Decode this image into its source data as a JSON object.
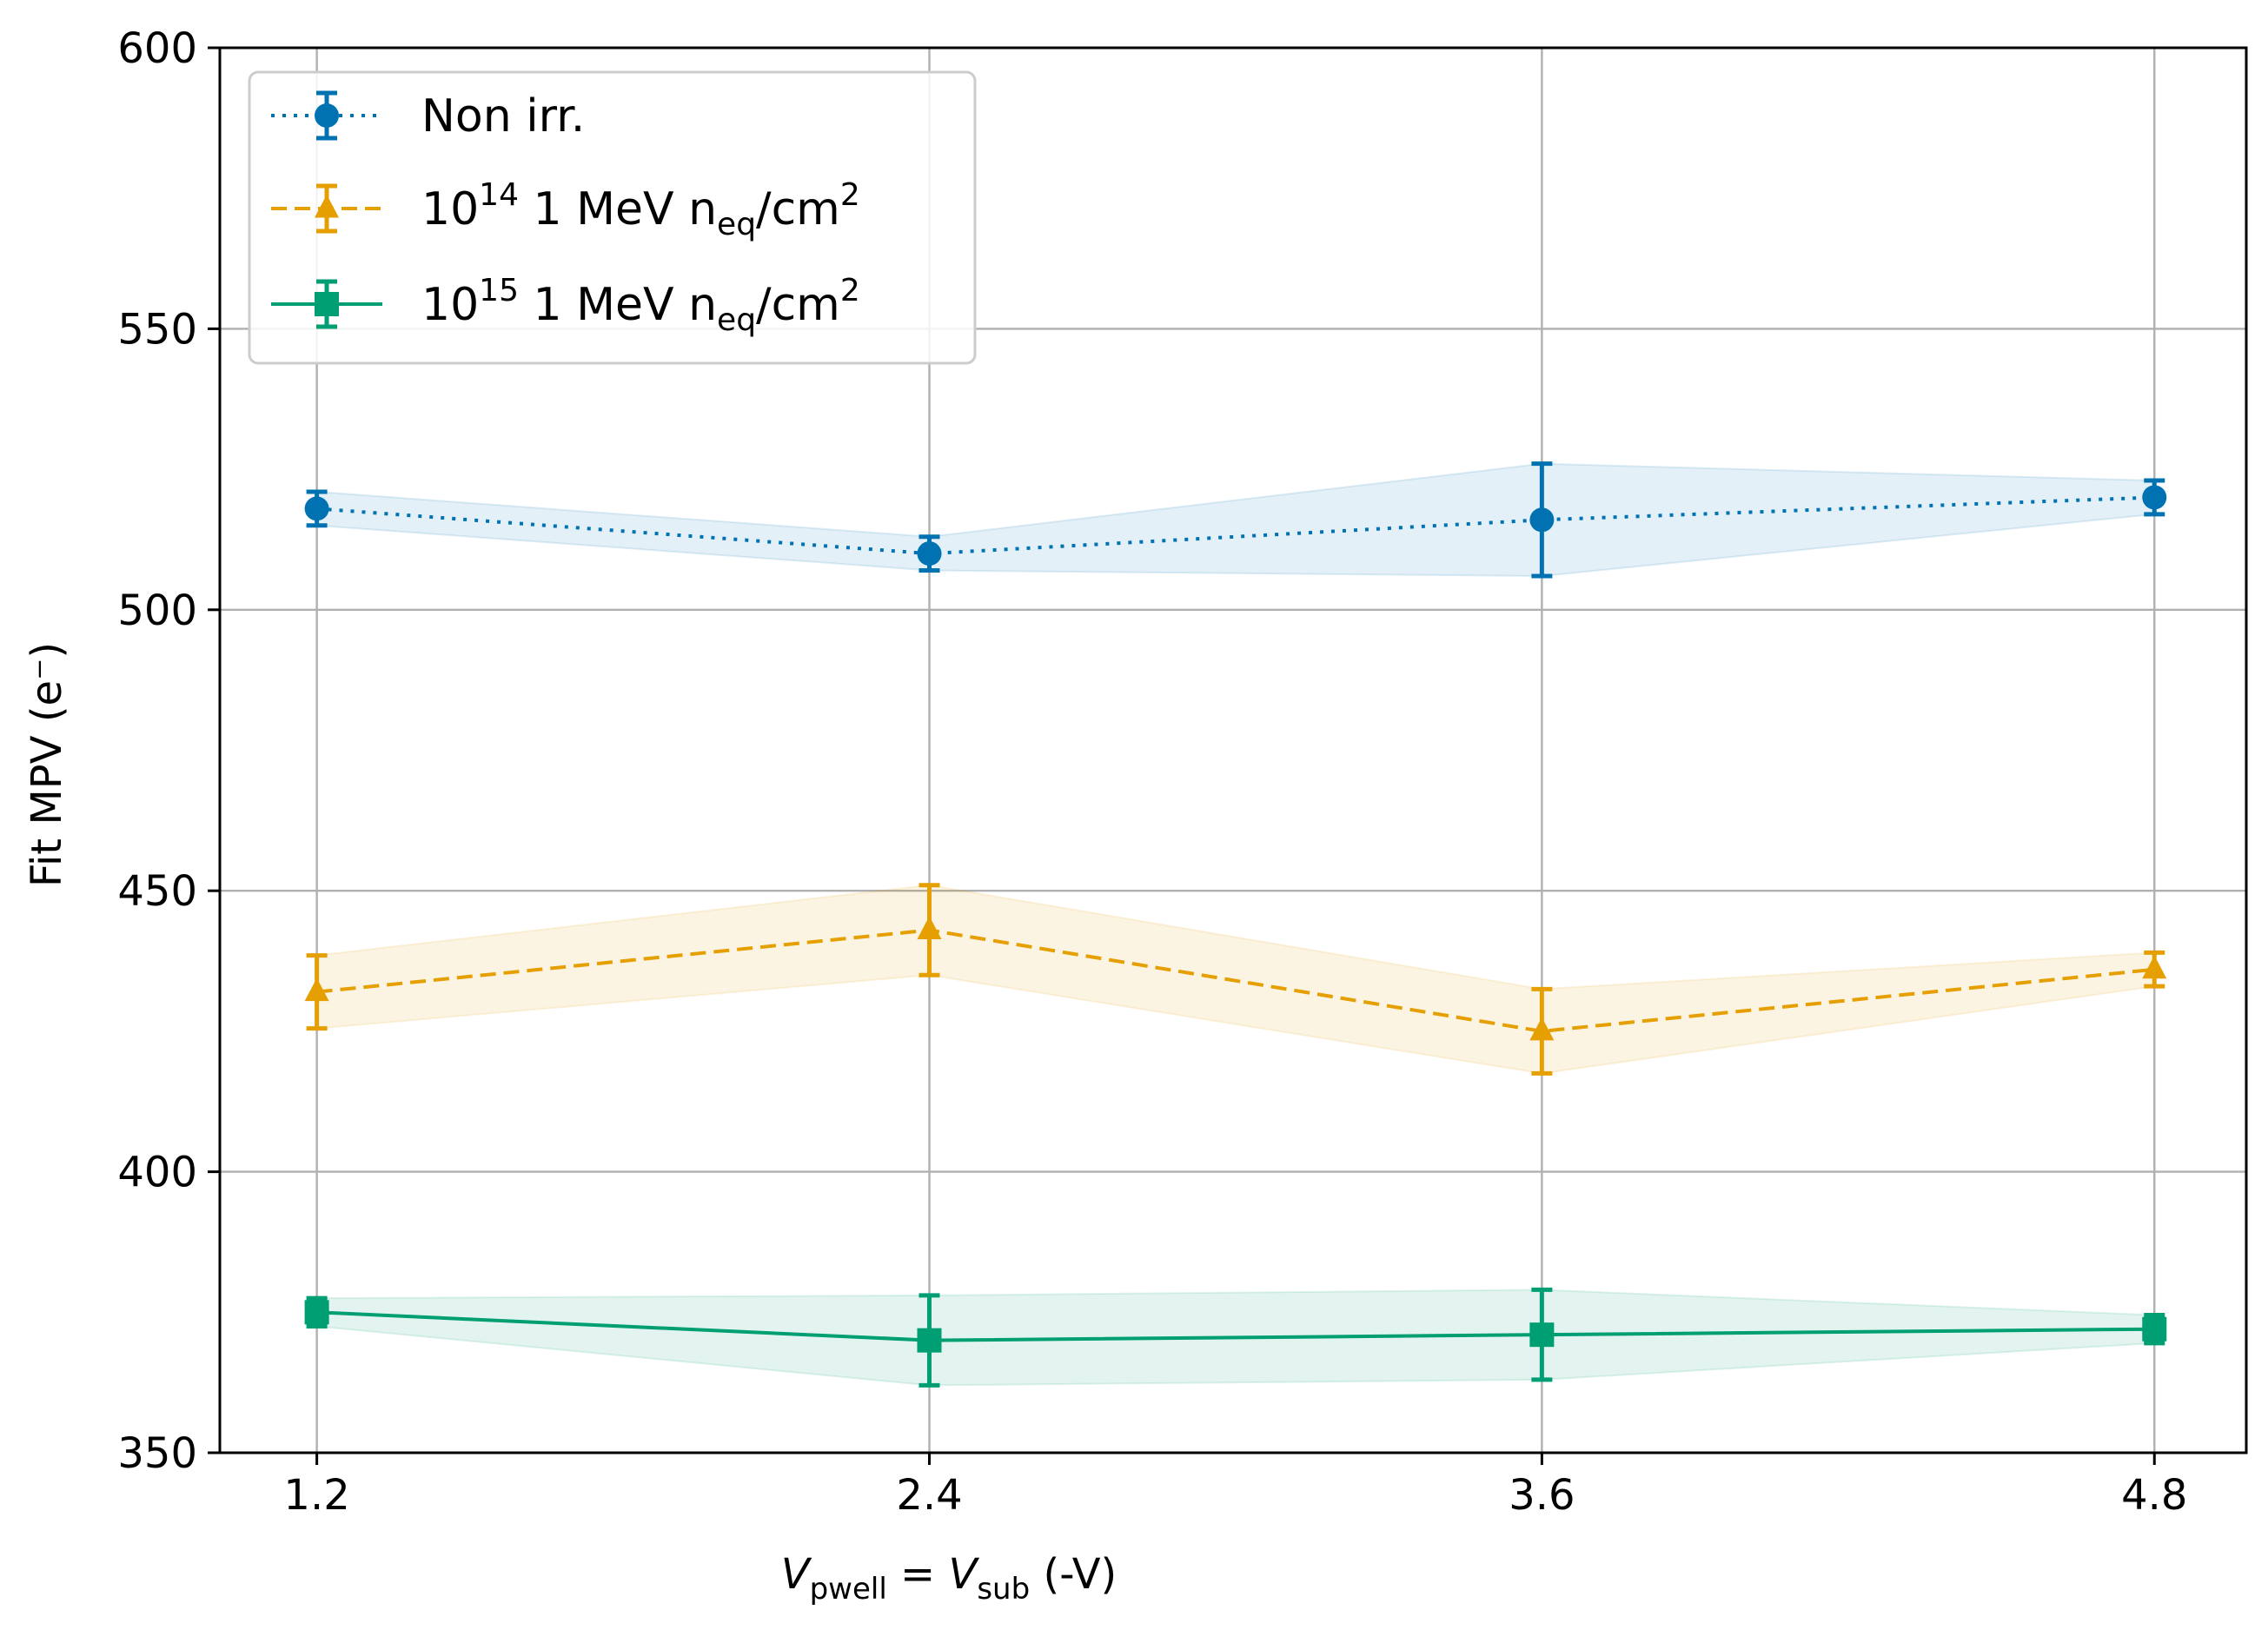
{
  "chart_data": {
    "type": "line",
    "title": "",
    "xlabel": {
      "main1": "V",
      "sub1": "pwell",
      "eq": " = ",
      "main2": "V",
      "sub2": "sub",
      "unit": " (-V)"
    },
    "ylabel": "Fit MPV (e⁻)",
    "x": [
      1.2,
      2.4,
      3.6,
      4.8
    ],
    "x_tick_labels": [
      "1.2",
      "2.4",
      "3.6",
      "4.8"
    ],
    "xlim": [
      1.01,
      4.98
    ],
    "ylim": [
      350,
      600
    ],
    "y_ticks": [
      350,
      400,
      450,
      500,
      550,
      600
    ],
    "y_tick_labels": [
      "350",
      "400",
      "450",
      "500",
      "550",
      "600"
    ],
    "grid": true,
    "legend_position": "top-left",
    "series": [
      {
        "name": "Non irr.",
        "legend": {
          "base": "Non irr.",
          "exp": "",
          "rest": "",
          "sub": "",
          "tail": "",
          "exp2": ""
        },
        "color": "#0072b2",
        "linestyle": "dotted",
        "marker": "circle",
        "values": [
          518,
          510,
          516,
          520
        ],
        "errors": [
          3,
          3,
          10,
          3
        ]
      },
      {
        "name": "10^14 1 MeV n_eq/cm^2",
        "legend": {
          "base": "10",
          "exp": "14",
          "rest": " 1 MeV n",
          "sub": "eq",
          "tail": "/cm",
          "exp2": "2"
        },
        "color": "#e69f00",
        "linestyle": "dashed",
        "marker": "triangle",
        "values": [
          432,
          443,
          425,
          436
        ],
        "errors": [
          6.5,
          8,
          7.5,
          3
        ]
      },
      {
        "name": "10^15 1 MeV n_eq/cm^2",
        "legend": {
          "base": "10",
          "exp": "15",
          "rest": " 1 MeV n",
          "sub": "eq",
          "tail": "/cm",
          "exp2": "2"
        },
        "color": "#009e73",
        "linestyle": "solid",
        "marker": "square",
        "values": [
          375,
          370,
          371,
          372
        ],
        "errors": [
          2.5,
          8,
          8,
          2.5
        ]
      }
    ]
  }
}
